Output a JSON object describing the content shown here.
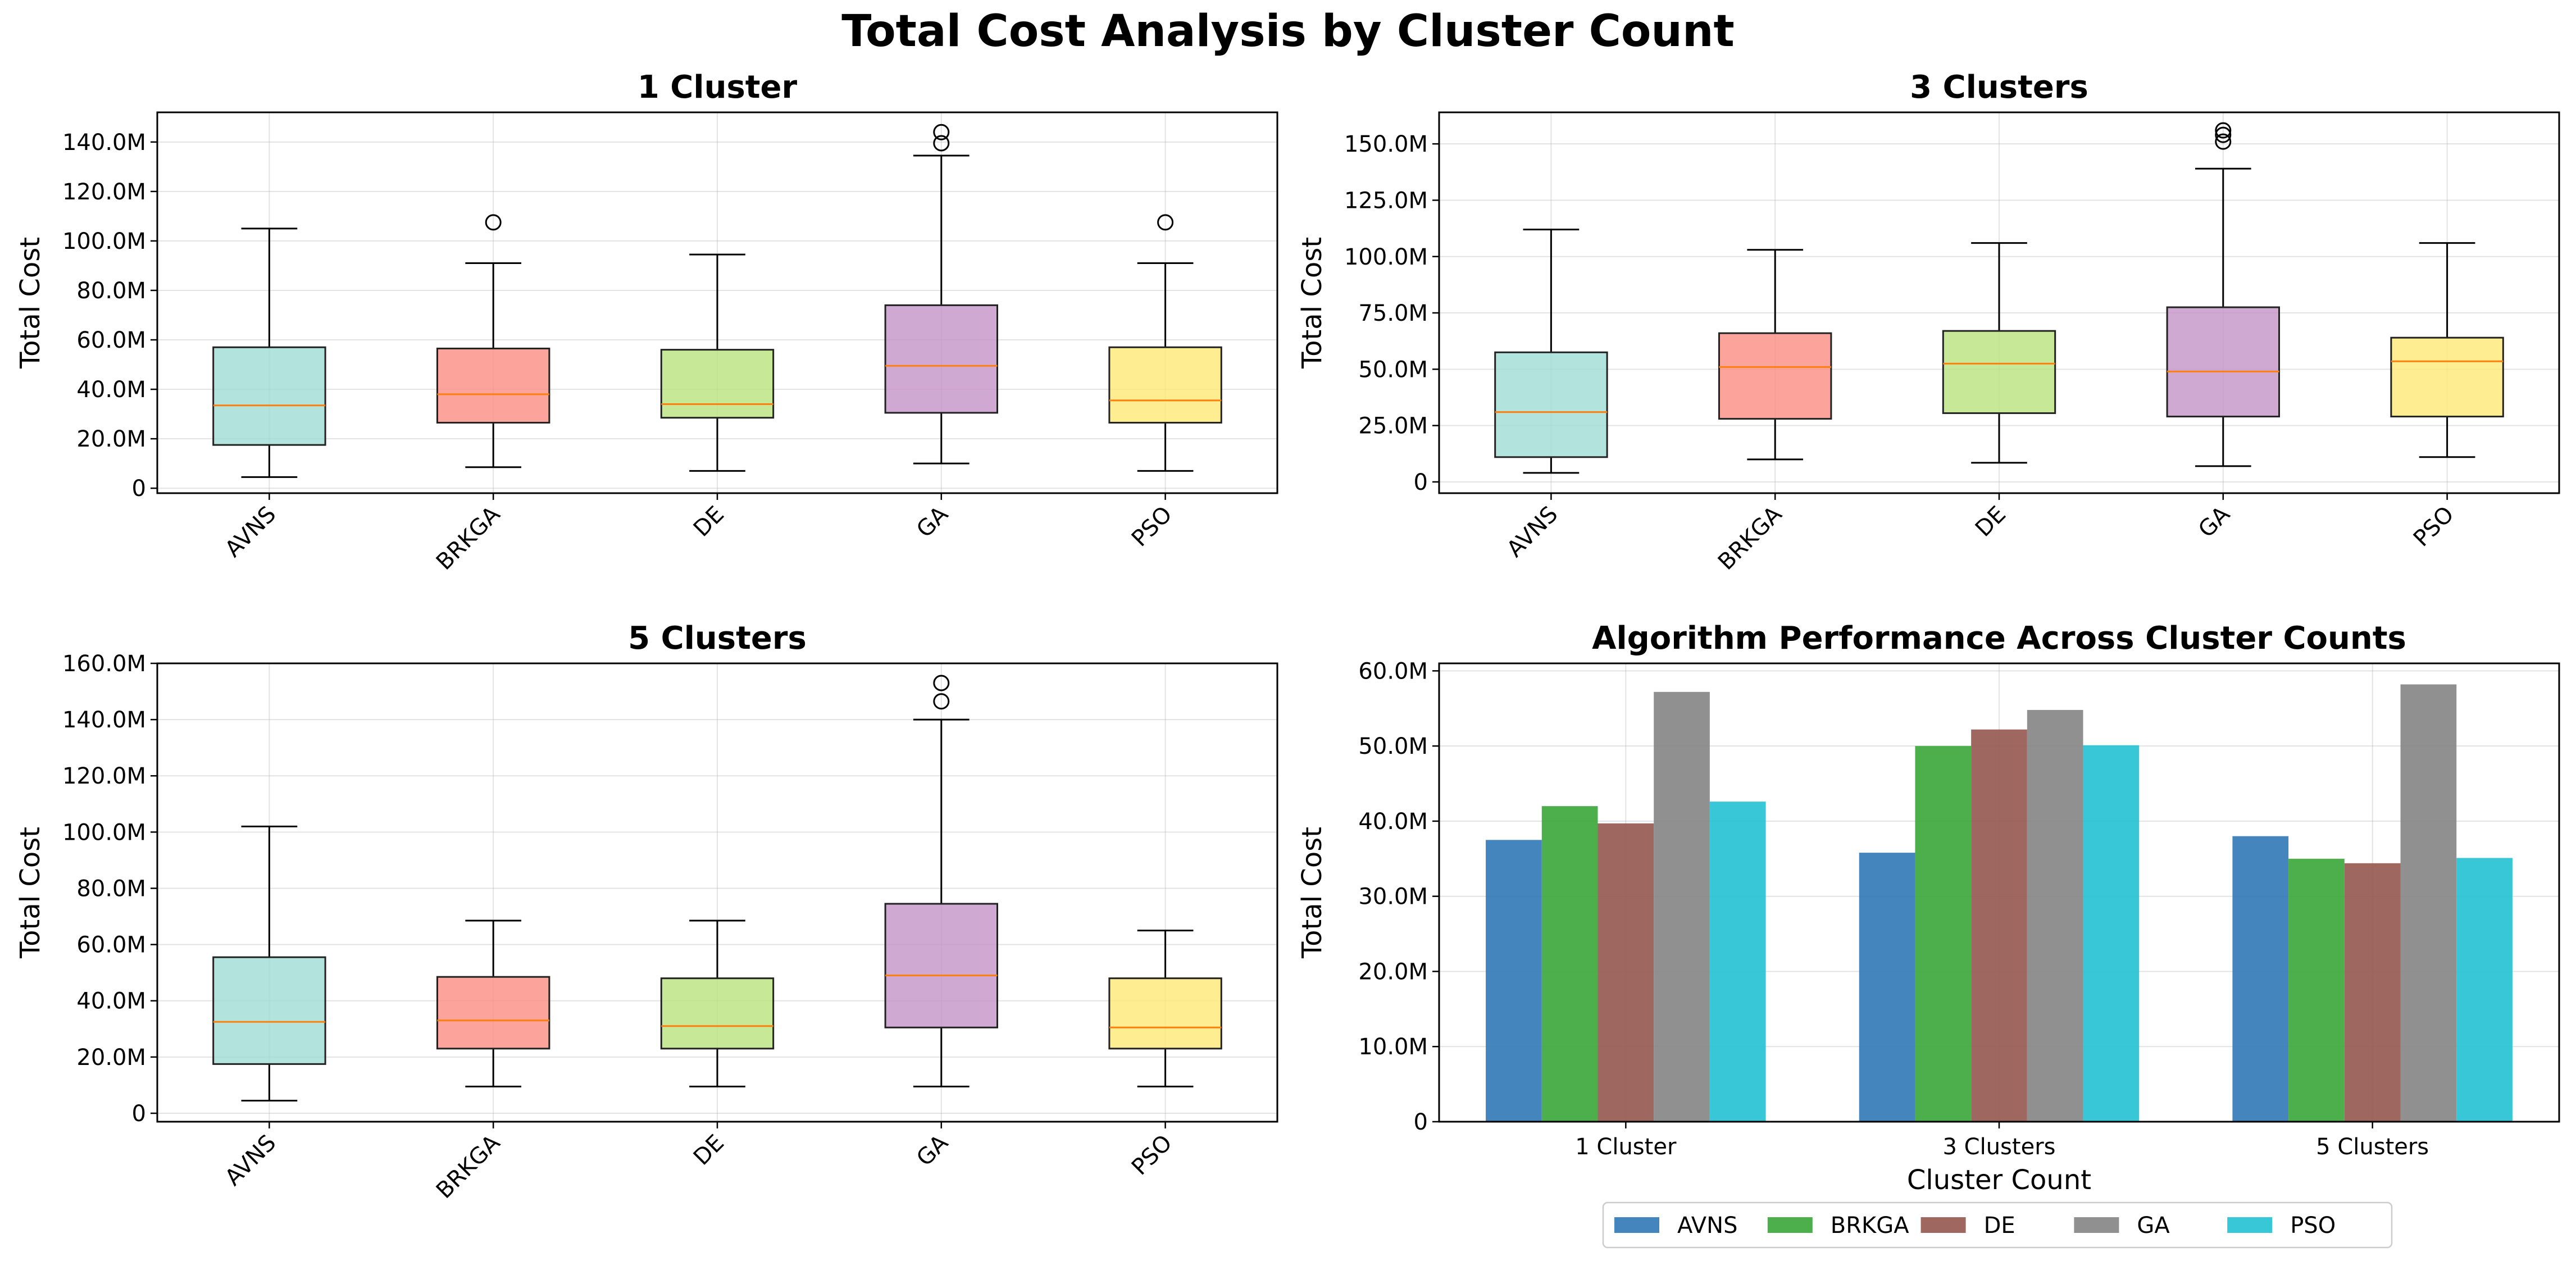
{
  "figure_title": "Total Cost Analysis by Cluster Count",
  "colors": {
    "box_fills": [
      "#9fdcd3",
      "#fb8d83",
      "#b9e27c",
      "#c493c8",
      "#fee876"
    ],
    "median": "#ff7f0e",
    "bars": [
      "#2f78b5",
      "#38a638",
      "#93584f",
      "#848484",
      "#22c1d2"
    ]
  },
  "chart_data": [
    {
      "type": "box",
      "title": "1 Cluster",
      "xlabel": "",
      "ylabel": "Total Cost",
      "categories": [
        "AVNS",
        "BRKGA",
        "DE",
        "GA",
        "PSO"
      ],
      "ylim": [
        -2,
        152
      ],
      "yticks": [
        0,
        20,
        40,
        60,
        80,
        100,
        120,
        140
      ],
      "ytick_labels": [
        "0",
        "20.0M",
        "40.0M",
        "60.0M",
        "80.0M",
        "100.0M",
        "120.0M",
        "140.0M"
      ],
      "unit": "M",
      "grid": true,
      "boxes": [
        {
          "name": "AVNS",
          "whislo": 4.5,
          "q1": 17.5,
          "med": 33.5,
          "q3": 57.0,
          "whishi": 105.0,
          "fliers": []
        },
        {
          "name": "BRKGA",
          "whislo": 8.5,
          "q1": 26.5,
          "med": 38.0,
          "q3": 56.5,
          "whishi": 91.0,
          "fliers": [
            107.5
          ]
        },
        {
          "name": "DE",
          "whislo": 7.0,
          "q1": 28.5,
          "med": 34.0,
          "q3": 56.0,
          "whishi": 94.5,
          "fliers": []
        },
        {
          "name": "GA",
          "whislo": 10.0,
          "q1": 30.5,
          "med": 49.5,
          "q3": 74.0,
          "whishi": 134.5,
          "fliers": [
            139.5,
            144.0
          ]
        },
        {
          "name": "PSO",
          "whislo": 7.0,
          "q1": 26.5,
          "med": 35.5,
          "q3": 57.0,
          "whishi": 91.0,
          "fliers": [
            107.5
          ]
        }
      ]
    },
    {
      "type": "box",
      "title": "3 Clusters",
      "xlabel": "",
      "ylabel": "Total Cost",
      "categories": [
        "AVNS",
        "BRKGA",
        "DE",
        "GA",
        "PSO"
      ],
      "ylim": [
        -5,
        164
      ],
      "yticks": [
        0,
        25,
        50,
        75,
        100,
        125,
        150
      ],
      "ytick_labels": [
        "0",
        "25.0M",
        "50.0M",
        "75.0M",
        "100.0M",
        "125.0M",
        "150.0M"
      ],
      "unit": "M",
      "grid": true,
      "boxes": [
        {
          "name": "AVNS",
          "whislo": 4.0,
          "q1": 11.0,
          "med": 31.0,
          "q3": 57.5,
          "whishi": 112.0,
          "fliers": []
        },
        {
          "name": "BRKGA",
          "whislo": 10.0,
          "q1": 28.0,
          "med": 51.0,
          "q3": 66.0,
          "whishi": 103.0,
          "fliers": []
        },
        {
          "name": "DE",
          "whislo": 8.5,
          "q1": 30.5,
          "med": 52.5,
          "q3": 67.0,
          "whishi": 106.0,
          "fliers": []
        },
        {
          "name": "GA",
          "whislo": 7.0,
          "q1": 29.0,
          "med": 49.0,
          "q3": 77.5,
          "whishi": 139.0,
          "fliers": [
            151.0,
            154.0,
            156.0
          ]
        },
        {
          "name": "PSO",
          "whislo": 11.0,
          "q1": 29.0,
          "med": 53.5,
          "q3": 64.0,
          "whishi": 106.0,
          "fliers": []
        }
      ]
    },
    {
      "type": "box",
      "title": "5 Clusters",
      "xlabel": "",
      "ylabel": "Total Cost",
      "categories": [
        "AVNS",
        "BRKGA",
        "DE",
        "GA",
        "PSO"
      ],
      "ylim": [
        -3,
        160
      ],
      "yticks": [
        0,
        20,
        40,
        60,
        80,
        100,
        120,
        140,
        160
      ],
      "ytick_labels": [
        "0",
        "20.0M",
        "40.0M",
        "60.0M",
        "80.0M",
        "100.0M",
        "120.0M",
        "140.0M",
        "160.0M"
      ],
      "unit": "M",
      "grid": true,
      "boxes": [
        {
          "name": "AVNS",
          "whislo": 4.5,
          "q1": 17.5,
          "med": 32.5,
          "q3": 55.5,
          "whishi": 102.0,
          "fliers": []
        },
        {
          "name": "BRKGA",
          "whislo": 9.5,
          "q1": 23.0,
          "med": 33.0,
          "q3": 48.5,
          "whishi": 68.5,
          "fliers": []
        },
        {
          "name": "DE",
          "whislo": 9.5,
          "q1": 23.0,
          "med": 31.0,
          "q3": 48.0,
          "whishi": 68.5,
          "fliers": []
        },
        {
          "name": "GA",
          "whislo": 9.5,
          "q1": 30.5,
          "med": 49.0,
          "q3": 74.5,
          "whishi": 140.0,
          "fliers": [
            146.5,
            153.0
          ]
        },
        {
          "name": "PSO",
          "whislo": 9.5,
          "q1": 23.0,
          "med": 30.5,
          "q3": 48.0,
          "whishi": 65.0,
          "fliers": []
        }
      ]
    },
    {
      "type": "bar",
      "title": "Algorithm Performance Across Cluster Counts",
      "xlabel": "Cluster Count",
      "ylabel": "Total Cost",
      "categories": [
        "1 Cluster",
        "3 Clusters",
        "5 Clusters"
      ],
      "ylim": [
        0,
        61
      ],
      "yticks": [
        0,
        10,
        20,
        30,
        40,
        50,
        60
      ],
      "ytick_labels": [
        "0",
        "10.0M",
        "20.0M",
        "30.0M",
        "40.0M",
        "50.0M",
        "60.0M"
      ],
      "unit": "M",
      "grid": true,
      "legend_position": "bottom-center",
      "series": [
        {
          "name": "AVNS",
          "values": [
            37.5,
            35.8,
            38.0
          ]
        },
        {
          "name": "BRKGA",
          "values": [
            42.0,
            50.0,
            35.0
          ]
        },
        {
          "name": "DE",
          "values": [
            39.7,
            52.2,
            34.4
          ]
        },
        {
          "name": "GA",
          "values": [
            57.2,
            54.8,
            58.2
          ]
        },
        {
          "name": "PSO",
          "values": [
            42.6,
            50.1,
            35.1
          ]
        }
      ]
    }
  ]
}
